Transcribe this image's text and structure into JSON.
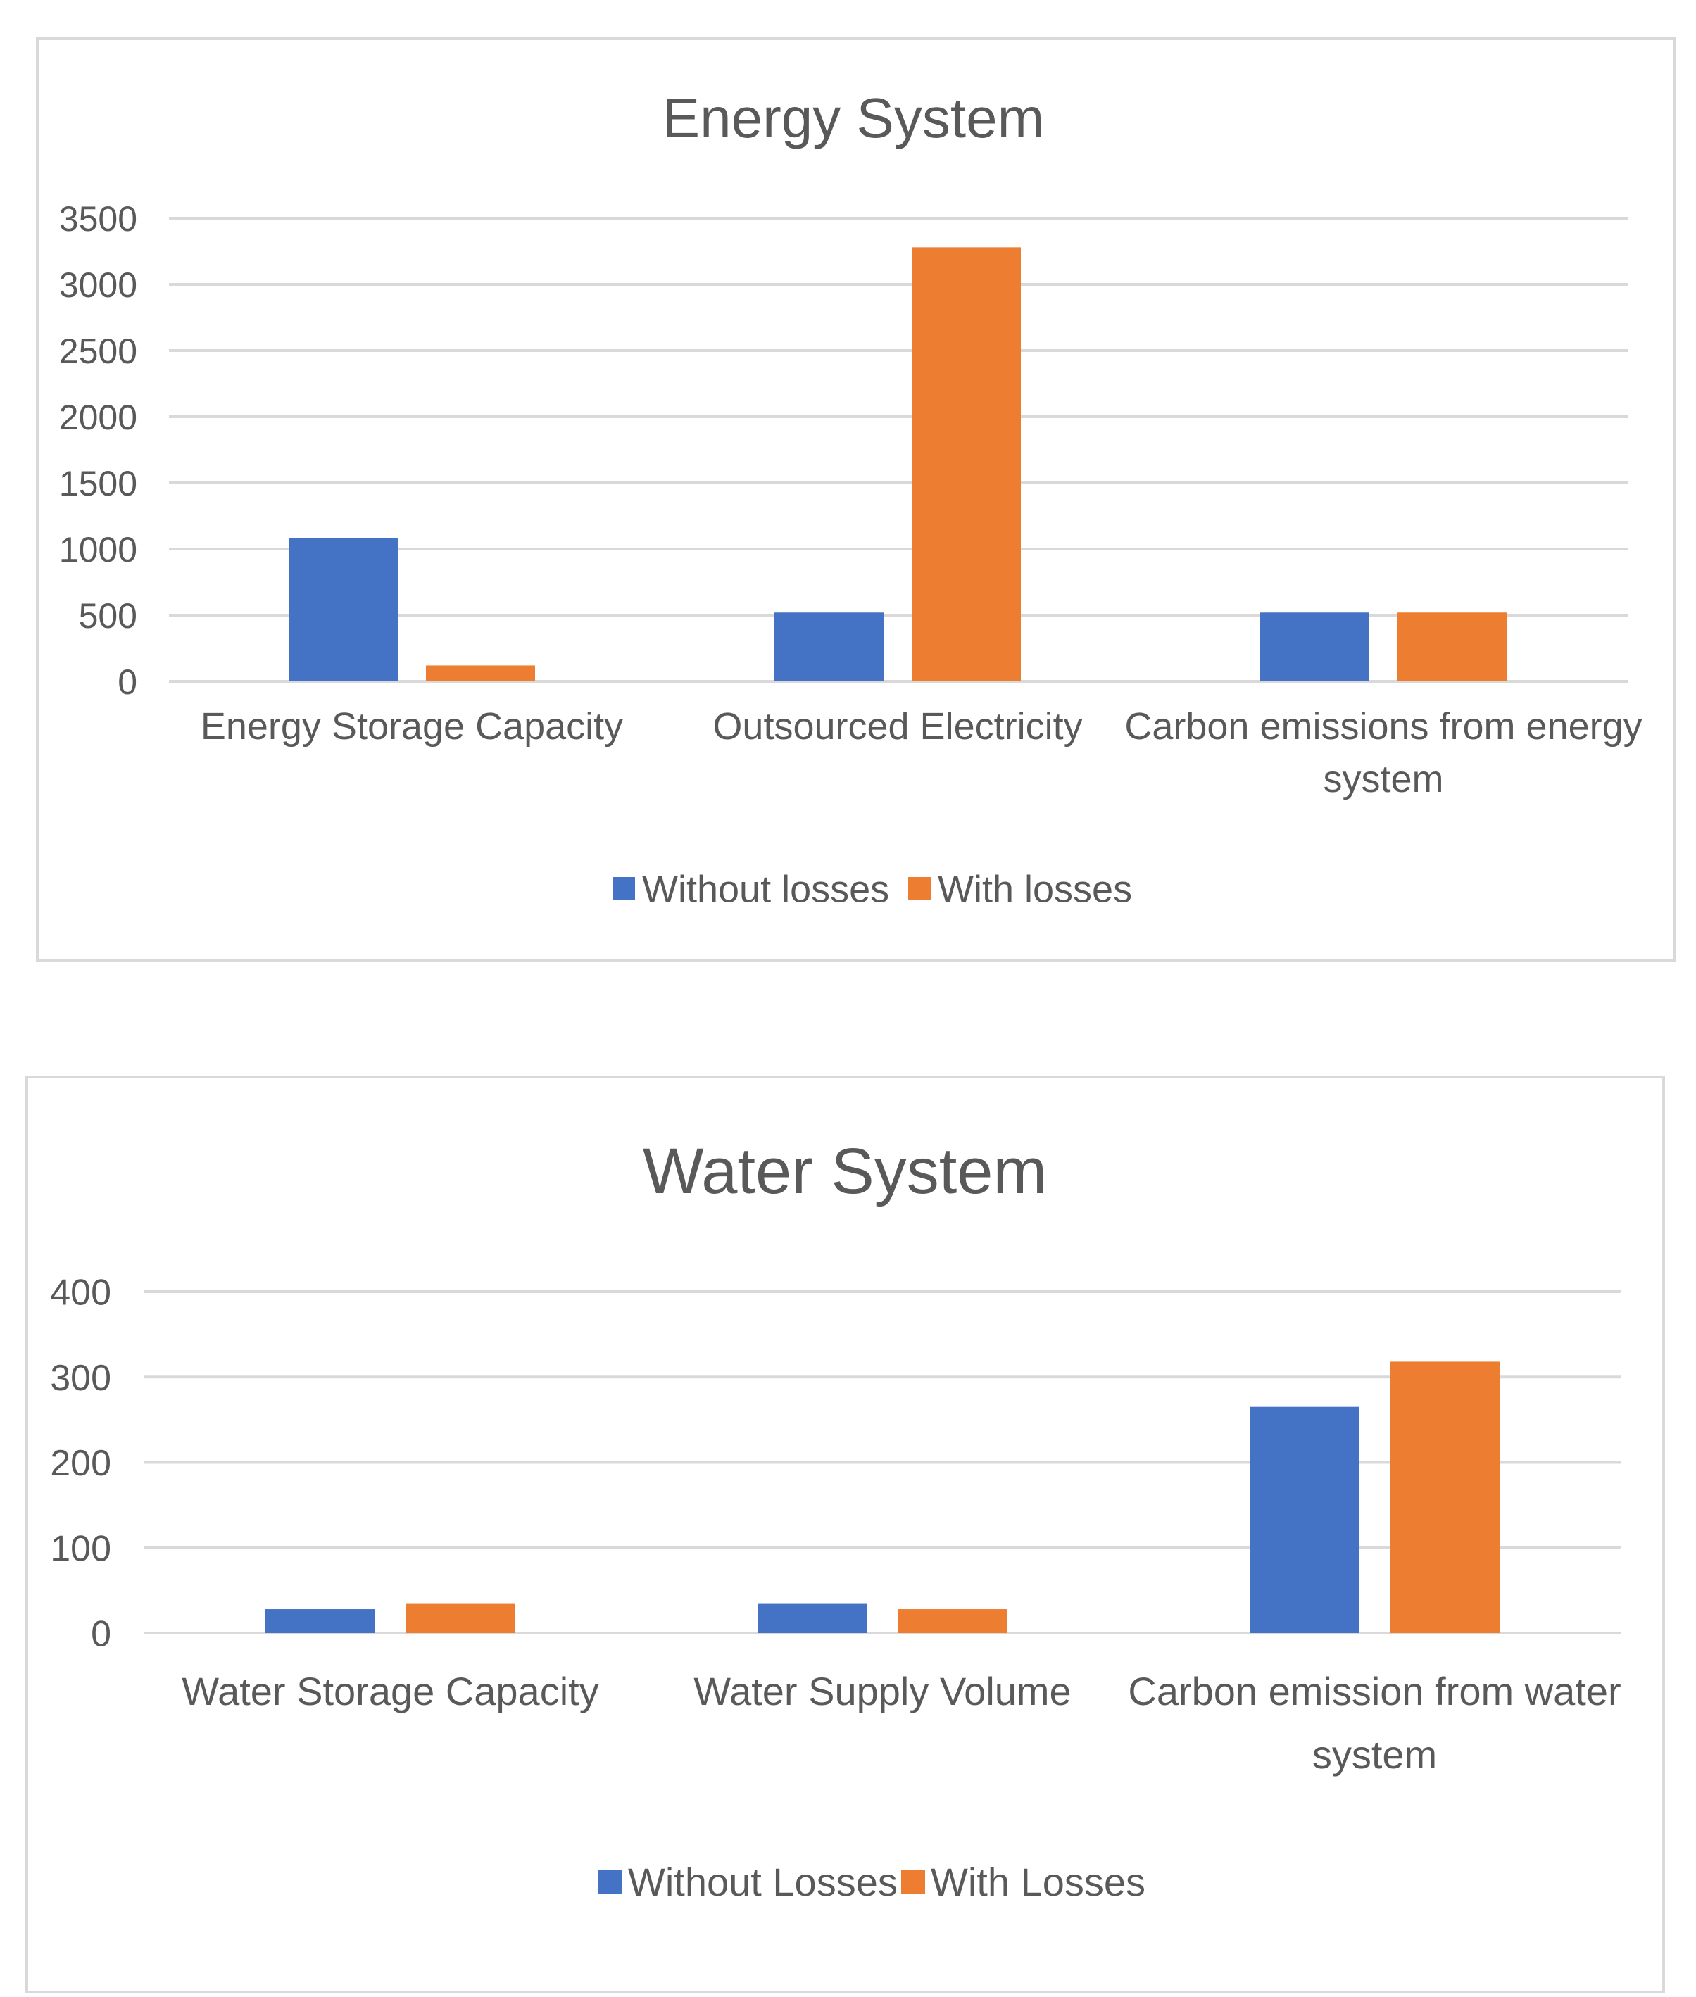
{
  "chart_data": [
    {
      "type": "bar",
      "title": "Energy System",
      "categories": [
        [
          "Energy Storage Capacity"
        ],
        [
          "Outsourced Electricity"
        ],
        [
          "Carbon emissions from energy",
          "system"
        ]
      ],
      "series": [
        {
          "name": "Without losses",
          "color": "#4472C4",
          "values": [
            1080,
            520,
            520
          ]
        },
        {
          "name": "With losses",
          "color": "#ED7D31",
          "values": [
            120,
            3280,
            520
          ]
        }
      ],
      "ylim": [
        0,
        3500
      ],
      "yticks": [
        "0",
        "500",
        "1000",
        "1500",
        "2000",
        "2500",
        "3000",
        "3500"
      ],
      "ytick_values": [
        0,
        500,
        1000,
        1500,
        2000,
        2500,
        3000,
        3500
      ],
      "grid": true,
      "legend": "bottom"
    },
    {
      "type": "bar",
      "title": "Water System",
      "categories": [
        [
          "Water Storage Capacity"
        ],
        [
          "Water Supply Volume"
        ],
        [
          "Carbon emission from water",
          "system"
        ]
      ],
      "series": [
        {
          "name": "Without Losses",
          "color": "#4472C4",
          "values": [
            28,
            35,
            265
          ]
        },
        {
          "name": "With Losses",
          "color": "#ED7D31",
          "values": [
            35,
            28,
            318
          ]
        }
      ],
      "ylim": [
        0,
        400
      ],
      "yticks": [
        "0",
        "100",
        "200",
        "300",
        "400"
      ],
      "ytick_values": [
        0,
        100,
        200,
        300,
        400
      ],
      "grid": true,
      "legend": "bottom"
    }
  ]
}
